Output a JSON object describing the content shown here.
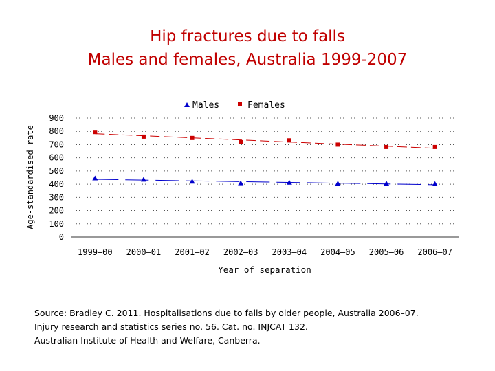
{
  "title": {
    "line1": "Hip fractures due to falls",
    "line2": "Males and females, Australia 1999-2007"
  },
  "chart_data": {
    "type": "line",
    "categories": [
      "1999–00",
      "2000–01",
      "2001–02",
      "2002–03",
      "2003–04",
      "2004–05",
      "2005–06",
      "2006–07"
    ],
    "series": [
      {
        "name": "Males",
        "values": [
          445,
          435,
          420,
          408,
          412,
          405,
          405,
          402
        ],
        "color": "#0000cc",
        "marker": "triangle"
      },
      {
        "name": "Females",
        "values": [
          795,
          760,
          750,
          718,
          732,
          700,
          682,
          682
        ],
        "color": "#cc0000",
        "marker": "square"
      }
    ],
    "xlabel": "Year of separation",
    "ylabel": "Age-standardised rate",
    "ylim": [
      0,
      900
    ],
    "yticks": [
      "0",
      "100",
      "200",
      "300",
      "400",
      "500",
      "600",
      "700",
      "800",
      "900"
    ],
    "grid": true,
    "legend": "top-center"
  },
  "source": {
    "line1": "Source: Bradley C. 2011. Hospitalisations due to falls by older people, Australia 2006–07.",
    "line2": "Injury research and statistics series no. 56. Cat. no. INJCAT 132.",
    "line3": "Australian Institute of Health and Welfare, Canberra."
  }
}
